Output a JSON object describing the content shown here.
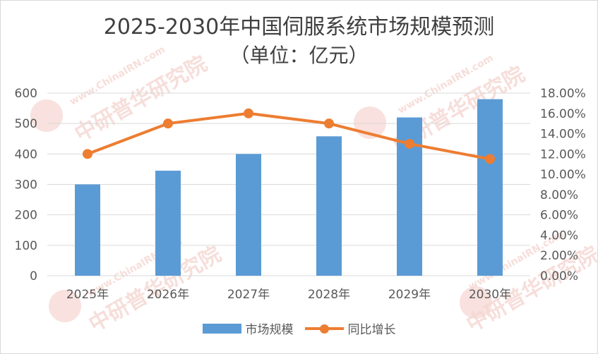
{
  "title_line1": "2025-2030年中国伺服系统市场规模预测",
  "title_line2": "（单位：亿元）",
  "watermark_text": "中研普华研究院",
  "watermark_url": "www.ChinaIRN.com",
  "colors": {
    "bar": "#5b9bd5",
    "line": "#ed7d31",
    "grid": "#d9d9d9"
  },
  "legend": {
    "bar_label": "市场规模",
    "line_label": "同比增长"
  },
  "chart_data": {
    "type": "bar+line",
    "categories": [
      "2025年",
      "2026年",
      "2027年",
      "2028年",
      "2029年",
      "2030年"
    ],
    "series": [
      {
        "name": "市场规模",
        "type": "bar",
        "axis": "left",
        "values": [
          300,
          345,
          400,
          458,
          520,
          580
        ]
      },
      {
        "name": "同比增长",
        "type": "line",
        "axis": "right",
        "values": [
          0.12,
          0.15,
          0.16,
          0.15,
          0.13,
          0.115
        ]
      }
    ],
    "ylim_left": [
      0,
      600
    ],
    "yticks_left": [
      "0",
      "100",
      "200",
      "300",
      "400",
      "500",
      "600"
    ],
    "ylim_right": [
      0,
      0.18
    ],
    "yticks_right": [
      "0.00%",
      "2.00%",
      "4.00%",
      "6.00%",
      "8.00%",
      "10.00%",
      "12.00%",
      "14.00%",
      "16.00%",
      "18.00%"
    ],
    "grid": true,
    "legend_position": "bottom"
  }
}
